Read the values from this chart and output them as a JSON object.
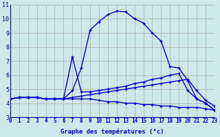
{
  "title": "",
  "xlabel": "Graphe des températures (°c)",
  "ylabel": "",
  "bg_color": "#cce8e8",
  "line_color": "#0000cc",
  "grid_color": "#aaaaaa",
  "xlim": [
    0,
    23
  ],
  "ylim": [
    3,
    11
  ],
  "yticks": [
    3,
    4,
    5,
    6,
    7,
    8,
    9,
    10,
    11
  ],
  "xticks": [
    0,
    1,
    2,
    3,
    4,
    5,
    6,
    7,
    8,
    9,
    10,
    11,
    12,
    13,
    14,
    15,
    16,
    17,
    18,
    19,
    20,
    21,
    22,
    23
  ],
  "series1_x": [
    0,
    1,
    2,
    3,
    4,
    5,
    6,
    7,
    8,
    9,
    10,
    11,
    12,
    13,
    14,
    15,
    16,
    17,
    18,
    19,
    20,
    21,
    22,
    23
  ],
  "series1_y": [
    4.3,
    4.4,
    4.4,
    4.4,
    4.3,
    4.3,
    4.3,
    4.9,
    6.5,
    9.2,
    9.8,
    10.3,
    10.55,
    10.5,
    10.0,
    9.7,
    9.0,
    8.4,
    6.6,
    6.5,
    5.6,
    4.3,
    4.0,
    3.5
  ],
  "series2_x": [
    0,
    1,
    2,
    3,
    4,
    5,
    6,
    7,
    8,
    9,
    10,
    11,
    12,
    13,
    14,
    15,
    16,
    17,
    18,
    19,
    20,
    21,
    22,
    23
  ],
  "series2_y": [
    4.3,
    4.4,
    4.4,
    4.4,
    4.3,
    4.3,
    4.3,
    7.3,
    4.8,
    4.8,
    4.9,
    5.0,
    5.1,
    5.2,
    5.4,
    5.5,
    5.7,
    5.8,
    6.0,
    6.1,
    4.9,
    4.3,
    4.0,
    3.5
  ],
  "series3_x": [
    0,
    1,
    2,
    3,
    4,
    5,
    6,
    7,
    8,
    9,
    10,
    11,
    12,
    13,
    14,
    15,
    16,
    17,
    18,
    19,
    20,
    21,
    22,
    23
  ],
  "series3_y": [
    4.3,
    4.4,
    4.4,
    4.4,
    4.3,
    4.3,
    4.3,
    4.3,
    4.3,
    4.3,
    4.2,
    4.1,
    4.1,
    4.0,
    4.0,
    3.9,
    3.9,
    3.8,
    3.8,
    3.7,
    3.7,
    3.7,
    3.6,
    3.5
  ],
  "series4_x": [
    0,
    1,
    2,
    3,
    4,
    5,
    6,
    7,
    8,
    9,
    10,
    11,
    12,
    13,
    14,
    15,
    16,
    17,
    18,
    19,
    20,
    21,
    22,
    23
  ],
  "series4_y": [
    4.3,
    4.4,
    4.4,
    4.4,
    4.3,
    4.3,
    4.3,
    4.4,
    4.5,
    4.6,
    4.7,
    4.8,
    4.9,
    5.0,
    5.1,
    5.2,
    5.3,
    5.4,
    5.5,
    5.6,
    5.7,
    4.9,
    4.2,
    3.8
  ],
  "tick_fontsize": 5.5,
  "xlabel_fontsize": 6.5
}
